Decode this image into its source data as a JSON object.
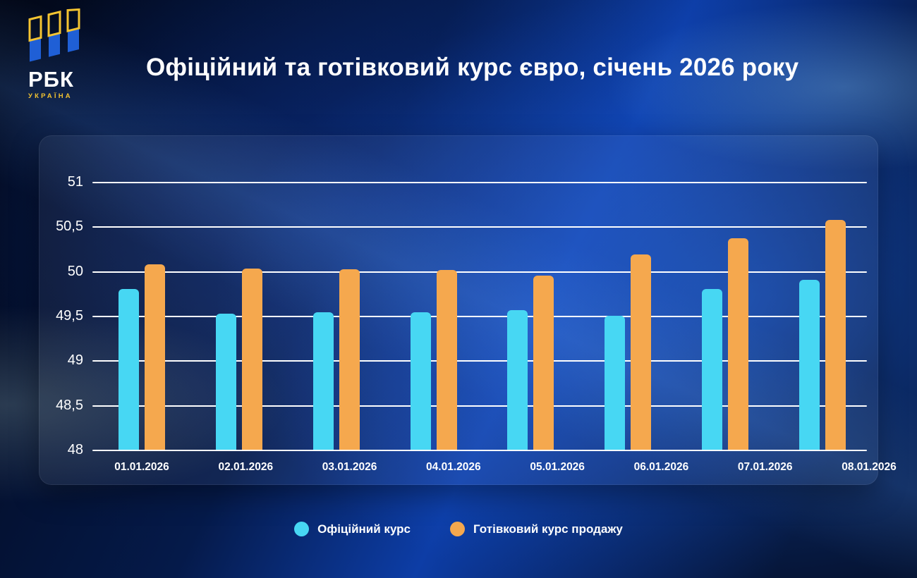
{
  "brand": {
    "name": "РБК",
    "subname": "УКРАЇНА"
  },
  "title": "Офіційний та готівковий курс євро, січень 2026 року",
  "colors": {
    "official": "#47D7F3",
    "cash": "#F5A84E",
    "accent_yellow": "#F5C431",
    "accent_blue": "#1F5FD6"
  },
  "chart_data": {
    "type": "bar",
    "title": "Офіційний та готівковий курс євро, січень 2026 року",
    "categories": [
      "01.01.2026",
      "02.01.2026",
      "03.01.2026",
      "04.01.2026",
      "05.01.2026",
      "06.01.2026",
      "07.01.2026",
      "08.01.2026"
    ],
    "series": [
      {
        "key": "official",
        "name": "Офіційний курс",
        "color": "#47D7F3",
        "values": [
          49.8,
          49.52,
          49.54,
          49.54,
          49.56,
          49.5,
          49.8,
          49.9
        ]
      },
      {
        "key": "cash",
        "name": "Готівковий курс продажу",
        "color": "#F5A84E",
        "values": [
          50.08,
          50.03,
          50.02,
          50.01,
          49.95,
          50.19,
          50.37,
          50.57
        ]
      }
    ],
    "ylim": [
      48,
      51
    ],
    "yticks": [
      {
        "value": 51,
        "label": "51"
      },
      {
        "value": 50.5,
        "label": "50,5"
      },
      {
        "value": 50,
        "label": "50"
      },
      {
        "value": 49.5,
        "label": "49,5"
      },
      {
        "value": 49,
        "label": "49"
      },
      {
        "value": 48.5,
        "label": "48,5"
      },
      {
        "value": 48,
        "label": "48"
      }
    ],
    "grid": true,
    "legend_position": "bottom",
    "xlabel": "",
    "ylabel": ""
  }
}
